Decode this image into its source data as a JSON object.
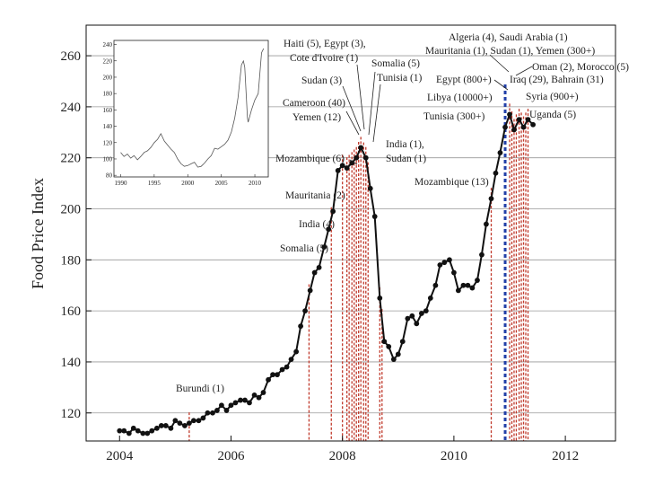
{
  "chart_data": {
    "type": "line",
    "title": "",
    "xlabel": "",
    "ylabel": "Food Price Index",
    "xlim": [
      2003.4,
      2012.9
    ],
    "ylim": [
      109,
      272
    ],
    "xticks": [
      2004,
      2006,
      2008,
      2010,
      2012
    ],
    "yticks": [
      120,
      140,
      160,
      180,
      200,
      220,
      240,
      260
    ],
    "grid": "horizontal",
    "colors": {
      "line": "#111111",
      "riot": "#c0392b",
      "riot_major": "#2240a8",
      "inset_line": "#555555"
    },
    "series": [
      {
        "name": "Food Price Index",
        "x": [
          2004.0,
          2004.08,
          2004.17,
          2004.25,
          2004.33,
          2004.42,
          2004.5,
          2004.58,
          2004.67,
          2004.75,
          2004.83,
          2004.92,
          2005.0,
          2005.08,
          2005.17,
          2005.25,
          2005.33,
          2005.42,
          2005.5,
          2005.58,
          2005.67,
          2005.75,
          2005.83,
          2005.92,
          2006.0,
          2006.08,
          2006.17,
          2006.25,
          2006.33,
          2006.42,
          2006.5,
          2006.58,
          2006.67,
          2006.75,
          2006.83,
          2006.92,
          2007.0,
          2007.08,
          2007.17,
          2007.25,
          2007.33,
          2007.42,
          2007.5,
          2007.58,
          2007.67,
          2007.75,
          2007.83,
          2007.92,
          2008.0,
          2008.08,
          2008.17,
          2008.25,
          2008.33,
          2008.42,
          2008.5,
          2008.58,
          2008.67,
          2008.75,
          2008.83,
          2008.92,
          2009.0,
          2009.08,
          2009.17,
          2009.25,
          2009.33,
          2009.42,
          2009.5,
          2009.58,
          2009.67,
          2009.75,
          2009.83,
          2009.92,
          2010.0,
          2010.08,
          2010.17,
          2010.25,
          2010.33,
          2010.42,
          2010.5,
          2010.58,
          2010.67,
          2010.75,
          2010.83,
          2010.92,
          2011.0,
          2011.08,
          2011.17,
          2011.25,
          2011.33,
          2011.42
        ],
        "values": [
          113,
          113,
          112,
          114,
          113,
          112,
          112,
          113,
          114,
          115,
          115,
          114,
          117,
          116,
          115,
          116,
          117,
          117,
          118,
          120,
          120,
          121,
          123,
          121,
          123,
          124,
          125,
          125,
          124,
          127,
          126,
          128,
          133,
          135,
          135,
          137,
          138,
          141,
          144,
          154,
          160,
          168,
          175,
          177,
          185,
          192,
          199,
          215,
          217,
          216,
          218,
          220,
          224,
          220,
          208,
          197,
          165,
          148,
          146,
          141,
          143,
          148,
          157,
          158,
          155,
          159,
          160,
          165,
          170,
          178,
          179,
          180,
          175,
          168,
          170,
          170,
          169,
          172,
          182,
          194,
          204,
          214,
          222,
          232,
          237,
          231,
          235,
          232,
          235,
          233
        ]
      }
    ],
    "riot_lines": [
      2005.25,
      2007.4,
      2007.8,
      2008.0,
      2008.08,
      2008.12,
      2008.17,
      2008.21,
      2008.25,
      2008.29,
      2008.33,
      2008.38,
      2008.42,
      2008.46,
      2008.67,
      2008.71,
      2010.67,
      2011.0,
      2011.04,
      2011.08,
      2011.12,
      2011.17,
      2011.21,
      2011.25,
      2011.29,
      2011.33
    ],
    "riot_lines_major": [
      2010.92
    ],
    "annotations": [
      "Burundi (1)",
      "Somalia (5)",
      "India (4)",
      "Mauritania (2)",
      "Mozambique (6)",
      "Cameroon (40)",
      "Yemen (12)",
      "Sudan (3)",
      "Haiti (5), Egypt (3),",
      "Cote d'Ivoire (1)",
      "Somalia (5)",
      "Tunisia (1)",
      "India (1),",
      "Sudan (1)",
      "Mozambique (13)",
      "Algeria (4), Saudi Arabia (1)",
      "Mauritania (1), Sudan (1), Yemen (300+)",
      "Oman (2), Morocco (5)",
      "Egypt (800+)",
      "Iraq (29), Bahrain (31)",
      "Libya (10000+)",
      "Syria (900+)",
      "Tunisia (300+)",
      "Uganda (5)"
    ],
    "inset": {
      "type": "line",
      "xticks": [
        "1990",
        "1995",
        "2000",
        "2005",
        "2010"
      ],
      "yticks": [
        "80",
        "100",
        "120",
        "140",
        "160",
        "180",
        "200",
        "220",
        "240"
      ],
      "xlim": [
        1989,
        2012
      ],
      "ylim": [
        78,
        245
      ],
      "x": [
        1990,
        1990.5,
        1991,
        1991.5,
        1992,
        1992.5,
        1993,
        1993.5,
        1994,
        1994.5,
        1995,
        1995.5,
        1996,
        1996.5,
        1997,
        1997.5,
        1998,
        1998.5,
        1999,
        1999.5,
        2000,
        2000.5,
        2001,
        2001.5,
        2002,
        2002.5,
        2003,
        2003.5,
        2004,
        2004.5,
        2005,
        2005.5,
        2006,
        2006.5,
        2007,
        2007.5,
        2008,
        2008.3,
        2008.5,
        2008.9,
        2009,
        2009.5,
        2010,
        2010.5,
        2011,
        2011.3
      ],
      "values": [
        108,
        103,
        106,
        101,
        104,
        99,
        103,
        108,
        110,
        114,
        120,
        124,
        131,
        122,
        117,
        112,
        108,
        100,
        94,
        91,
        92,
        94,
        96,
        90,
        91,
        95,
        100,
        104,
        113,
        112,
        115,
        118,
        123,
        133,
        150,
        175,
        215,
        220,
        212,
        150,
        145,
        160,
        172,
        180,
        230,
        235
      ]
    }
  }
}
